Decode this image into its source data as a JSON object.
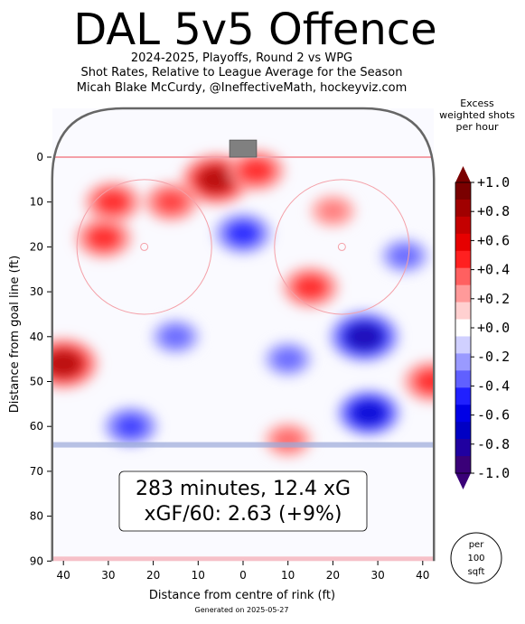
{
  "header": {
    "title": "DAL 5v5 Offence",
    "subtitle_lines": [
      "2024-2025, Playoffs, Round 2 vs WPG",
      "Shot Rates, Relative to League Average for the Season",
      "Micah Blake McCurdy, @IneffectiveMath, hockeyviz.com"
    ]
  },
  "colorbar": {
    "title_lines": [
      "Excess",
      "weighted shots",
      "per hour"
    ],
    "ticks": [
      "+1.0",
      "+0.8",
      "+0.6",
      "+0.4",
      "+0.2",
      "+0.0",
      "-0.2",
      "-0.4",
      "-0.6",
      "-0.8",
      "-1.0"
    ],
    "levels": [
      1.0,
      0.8,
      0.6,
      0.4,
      0.2,
      0.0,
      -0.2,
      -0.4,
      -0.6,
      -0.8,
      -1.0
    ],
    "colors": [
      "#7a0000",
      "#a00000",
      "#c40000",
      "#e60000",
      "#ff2020",
      "#ff6060",
      "#ff9a9a",
      "#ffd0d0",
      "#ffffff",
      "#d0d0ff",
      "#9a9aff",
      "#6060ff",
      "#2020ff",
      "#0000e6",
      "#0000c4",
      "#2000a0",
      "#3a0078"
    ]
  },
  "summary": {
    "line1": "283 minutes, 12.4 xG",
    "line2": "xGF/60: 2.63 (+9%)"
  },
  "unit_badge": [
    "per",
    "100",
    "sqft"
  ],
  "footer": "Generated on 2025-05-27",
  "chart_data": {
    "type": "heatmap",
    "title": "DAL 5v5 Offence",
    "xlabel": "Distance from centre of rink (ft)",
    "ylabel": "Distance from goal line (ft)",
    "xlim": [
      -42.5,
      42.5
    ],
    "ylim": [
      90,
      -11
    ],
    "x_ticks": [
      40,
      30,
      20,
      10,
      0,
      10,
      20,
      30,
      40
    ],
    "y_ticks": [
      0,
      10,
      20,
      30,
      40,
      50,
      60,
      70,
      80,
      90
    ],
    "colorbar_range": [
      -1.0,
      1.0
    ],
    "summary": {
      "minutes": 283,
      "xG": 12.4,
      "xGF_per_60": 2.63,
      "relative_pct": "+9%"
    },
    "hotspots": [
      {
        "x": -6,
        "y": 5,
        "sign": 1,
        "peak": 1.0
      },
      {
        "x": -29,
        "y": 10,
        "sign": 1,
        "peak": 0.6
      },
      {
        "x": -31,
        "y": 18,
        "sign": 1,
        "peak": 0.6
      },
      {
        "x": -16,
        "y": 10,
        "sign": 1,
        "peak": 0.5
      },
      {
        "x": 3,
        "y": 3,
        "sign": 1,
        "peak": 0.6
      },
      {
        "x": -40,
        "y": 46,
        "sign": 1,
        "peak": 1.0
      },
      {
        "x": 15,
        "y": 29,
        "sign": 1,
        "peak": 0.6
      },
      {
        "x": 42,
        "y": 50,
        "sign": 1,
        "peak": 0.6
      },
      {
        "x": 10,
        "y": 63,
        "sign": 1,
        "peak": 0.4
      },
      {
        "x": 20,
        "y": 12,
        "sign": 1,
        "peak": 0.3
      },
      {
        "x": 27,
        "y": 40,
        "sign": -1,
        "peak": 1.0
      },
      {
        "x": 28,
        "y": 57,
        "sign": -1,
        "peak": 0.8
      },
      {
        "x": 0,
        "y": 17,
        "sign": -1,
        "peak": 0.6
      },
      {
        "x": -25,
        "y": 60,
        "sign": -1,
        "peak": 0.5
      },
      {
        "x": 36,
        "y": 22,
        "sign": -1,
        "peak": 0.4
      },
      {
        "x": -15,
        "y": 40,
        "sign": -1,
        "peak": 0.4
      },
      {
        "x": 10,
        "y": 45,
        "sign": -1,
        "peak": 0.4
      }
    ]
  }
}
